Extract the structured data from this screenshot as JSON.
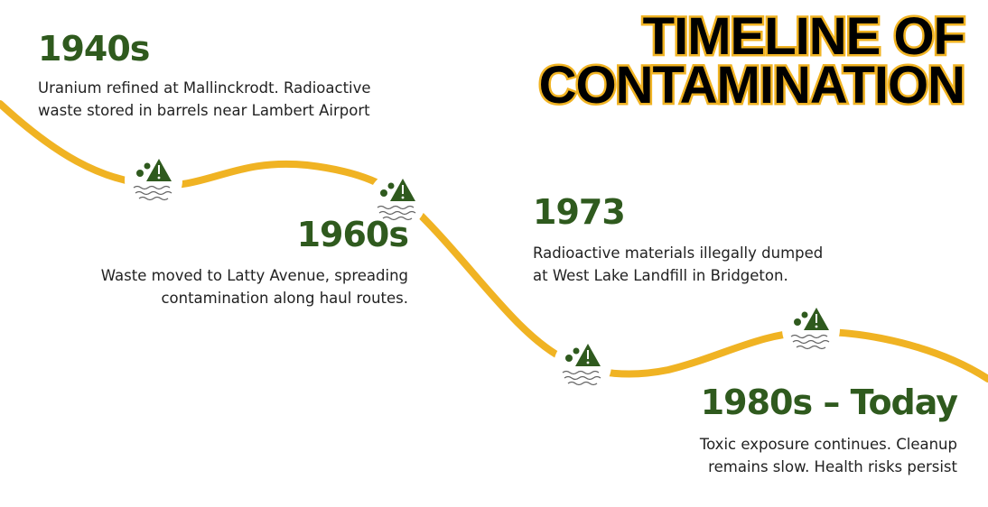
{
  "title": {
    "line1": "TIMELINE OF",
    "line2": "CONTAMINATION"
  },
  "colors": {
    "accent": "#f0b323",
    "heading": "#2f5a1e",
    "text": "#222222",
    "title": "#000000"
  },
  "events": [
    {
      "era": "1940s",
      "lines": [
        "Uranium refined at Mallinckrodt. Radioactive",
        "waste stored in barrels near Lambert Airport"
      ]
    },
    {
      "era": "1960s",
      "lines": [
        "Waste moved to Latty Avenue, spreading",
        "contamination along haul routes."
      ]
    },
    {
      "era": "1973",
      "lines": [
        "Radioactive materials illegally dumped",
        "at West Lake Landfill in Bridgeton."
      ]
    },
    {
      "era": "1980s – Today",
      "lines": [
        "Toxic exposure continues. Cleanup",
        "remains slow. Health risks persist"
      ]
    }
  ],
  "icon": "contaminated-water-warning-icon"
}
